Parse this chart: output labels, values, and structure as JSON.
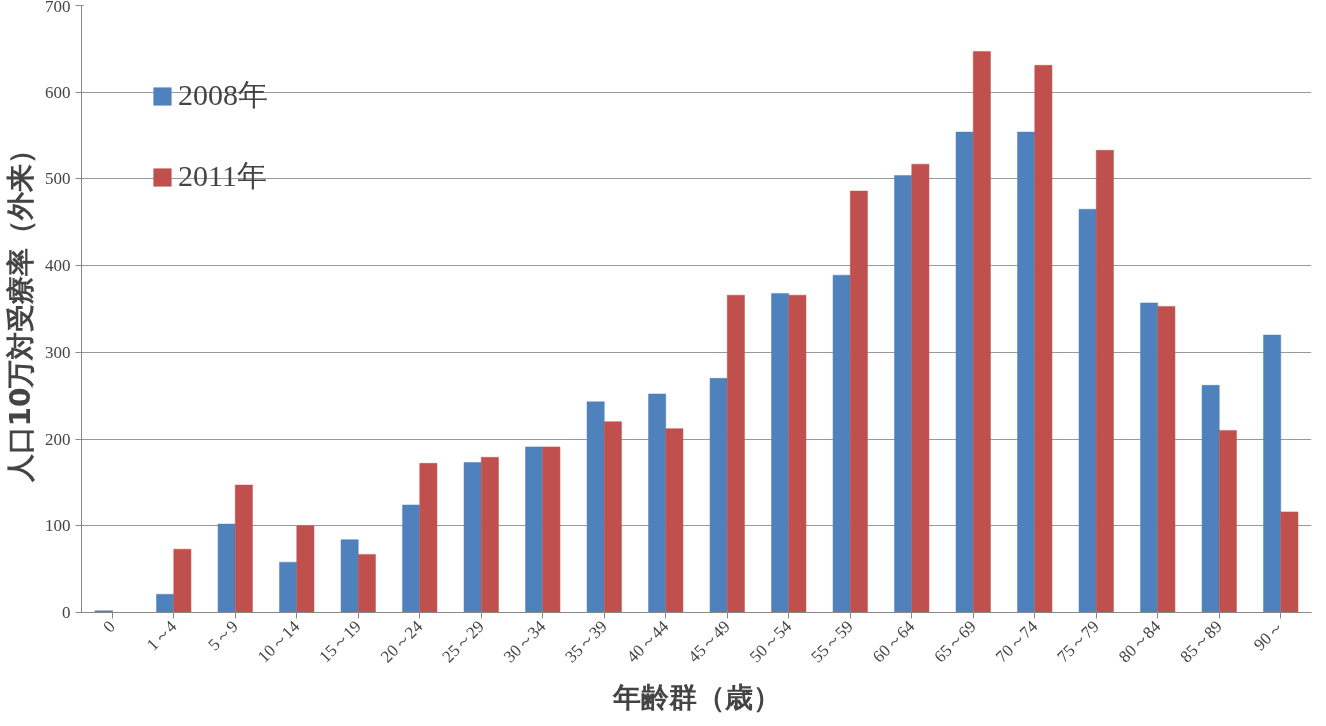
{
  "chart_data": {
    "type": "bar",
    "xlabel": "年齢群（歳）",
    "ylabel": "人口10万対受療率（外来）",
    "categories": [
      "0",
      "1～4",
      "5～9",
      "10～14",
      "15～19",
      "20～24",
      "25～29",
      "30～34",
      "35～39",
      "40～44",
      "45～49",
      "50～54",
      "55～59",
      "60～64",
      "65～69",
      "70～74",
      "75～79",
      "80～84",
      "85～89",
      "90～"
    ],
    "series": [
      {
        "name": "2008年",
        "color": "#4f81bd",
        "values": [
          2,
          21,
          102,
          58,
          84,
          124,
          173,
          191,
          243,
          252,
          270,
          368,
          389,
          504,
          554,
          554,
          465,
          357,
          262,
          320
        ]
      },
      {
        "name": "2011年",
        "color": "#c0504d",
        "values": [
          0,
          73,
          147,
          100,
          67,
          172,
          179,
          191,
          220,
          212,
          366,
          366,
          486,
          517,
          647,
          631,
          533,
          353,
          210,
          116
        ]
      }
    ],
    "ylim": [
      0,
      700
    ],
    "yticks": [
      0,
      100,
      200,
      300,
      400,
      500,
      600,
      700
    ],
    "grid": "y",
    "legend": "top left"
  }
}
